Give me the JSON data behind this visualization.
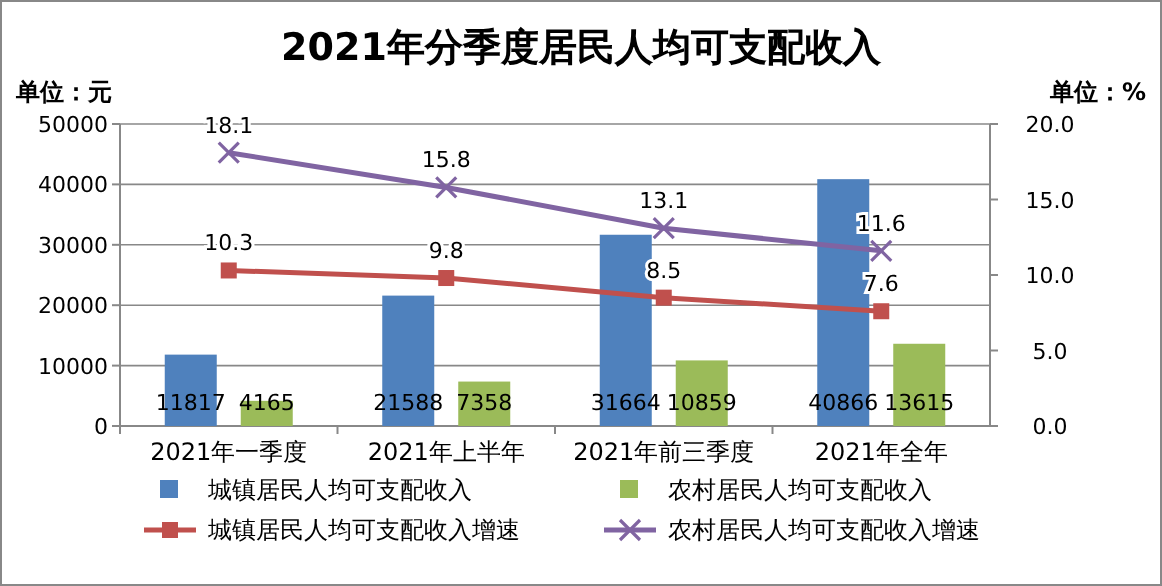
{
  "chart_data": {
    "type": "bar",
    "title": "2021年分季度居民人均可支配收入",
    "categories": [
      "2021年一季度",
      "2021年上半年",
      "2021年前三季度",
      "2021年全年"
    ],
    "series": [
      {
        "name": "城镇居民人均可支配收入",
        "color": "#4f81bd",
        "values": [
          11817,
          21588,
          31664,
          40866
        ]
      },
      {
        "name": "农村居民人均可支配收入",
        "color": "#9bbb59",
        "values": [
          4165,
          7358,
          10859,
          13615
        ]
      },
      {
        "name": "城镇居民人均可支配收入增速",
        "type": "line",
        "axis": "y2",
        "color": "#c0504d",
        "marker": "square",
        "values": [
          10.3,
          9.8,
          8.5,
          7.6
        ]
      },
      {
        "name": "农村居民人均可支配收入增速",
        "type": "line",
        "axis": "y2",
        "color": "#8064a2",
        "marker": "cross",
        "values": [
          18.1,
          15.8,
          13.1,
          11.6
        ]
      }
    ],
    "ylim": [
      0,
      50000
    ],
    "yticks": [
      0,
      10000,
      20000,
      30000,
      40000,
      50000
    ],
    "y2lim": [
      0,
      20
    ],
    "y2ticks": [
      {
        "value": 0,
        "label": "0.0"
      },
      {
        "value": 5,
        "label": "5.0"
      },
      {
        "value": 10,
        "label": "10.0"
      },
      {
        "value": 15,
        "label": "15.0"
      },
      {
        "value": 20,
        "label": "20.0"
      }
    ],
    "annotations": [
      "单位：元",
      "单位：%"
    ],
    "grid": "y",
    "legend": "bottom",
    "data_labels": true,
    "line_style": "solid"
  }
}
